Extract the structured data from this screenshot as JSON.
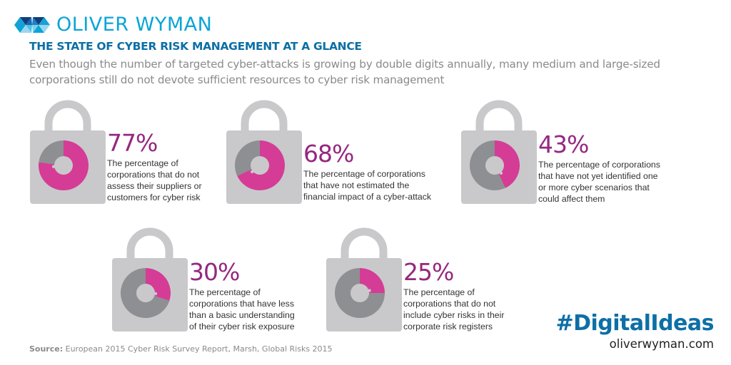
{
  "brand": {
    "name": "OLIVER WYMAN",
    "colors": {
      "logo_cyan": "#0aa5d6",
      "title_blue": "#0d6fa6",
      "accent_magenta": "#d53c96",
      "pct_purple": "#94287f",
      "lock_gray": "#c9c9cb",
      "ring_gray": "#8e8f92"
    }
  },
  "header": {
    "title": "THE STATE OF CYBER RISK MANAGEMENT AT A GLANCE",
    "subtitle": "Even though the number of targeted cyber-attacks is growing by double digits annually, many medium and large-sized corporations still do not devote sufficient resources to cyber risk management"
  },
  "chart_data": {
    "type": "pie",
    "variant": "donut",
    "title": "THE STATE OF CYBER RISK MANAGEMENT AT A GLANCE",
    "unit": "%",
    "items": [
      {
        "label": "77%",
        "value": 77,
        "description": "The percentage of corporations that do not assess their suppliers or customers for cyber risk",
        "lines": [
          "The percentage of",
          "corporations that do not",
          "assess their suppliers or",
          "customers for cyber risk"
        ]
      },
      {
        "label": "68%",
        "value": 68,
        "description": "The percentage of corporations that have not estimated the financial impact of a cyber-attack",
        "lines": [
          "The percentage of corporations",
          "that have not estimated the",
          "financial impact of a cyber-attack"
        ]
      },
      {
        "label": "43%",
        "value": 43,
        "description": "The percentage of corporations that have not yet identified one or more cyber scenarios that could affect them",
        "lines": [
          "The percentage of corporations",
          "that have not yet identified one",
          "or more cyber scenarios that",
          "could affect them"
        ]
      },
      {
        "label": "30%",
        "value": 30,
        "description": "The percentage of corporations that have less than a basic understanding of their cyber risk exposure",
        "lines": [
          "The percentage of",
          "corporations that have less",
          "than a basic understanding",
          "of their cyber risk exposure"
        ]
      },
      {
        "label": "25%",
        "value": 25,
        "description": "The percentage of corporations that do not include cyber risks in their corporate risk registers",
        "lines": [
          "The percentage of",
          "corporations that do not",
          "include cyber risks in their",
          "corporate risk registers"
        ]
      }
    ]
  },
  "footer": {
    "source_label": "Source:",
    "source_text": " European 2015 Cyber Risk Survey Report, Marsh, Global Risks 2015",
    "hashtag": "#DigitalIdeas",
    "website": "oliverwyman.com"
  }
}
